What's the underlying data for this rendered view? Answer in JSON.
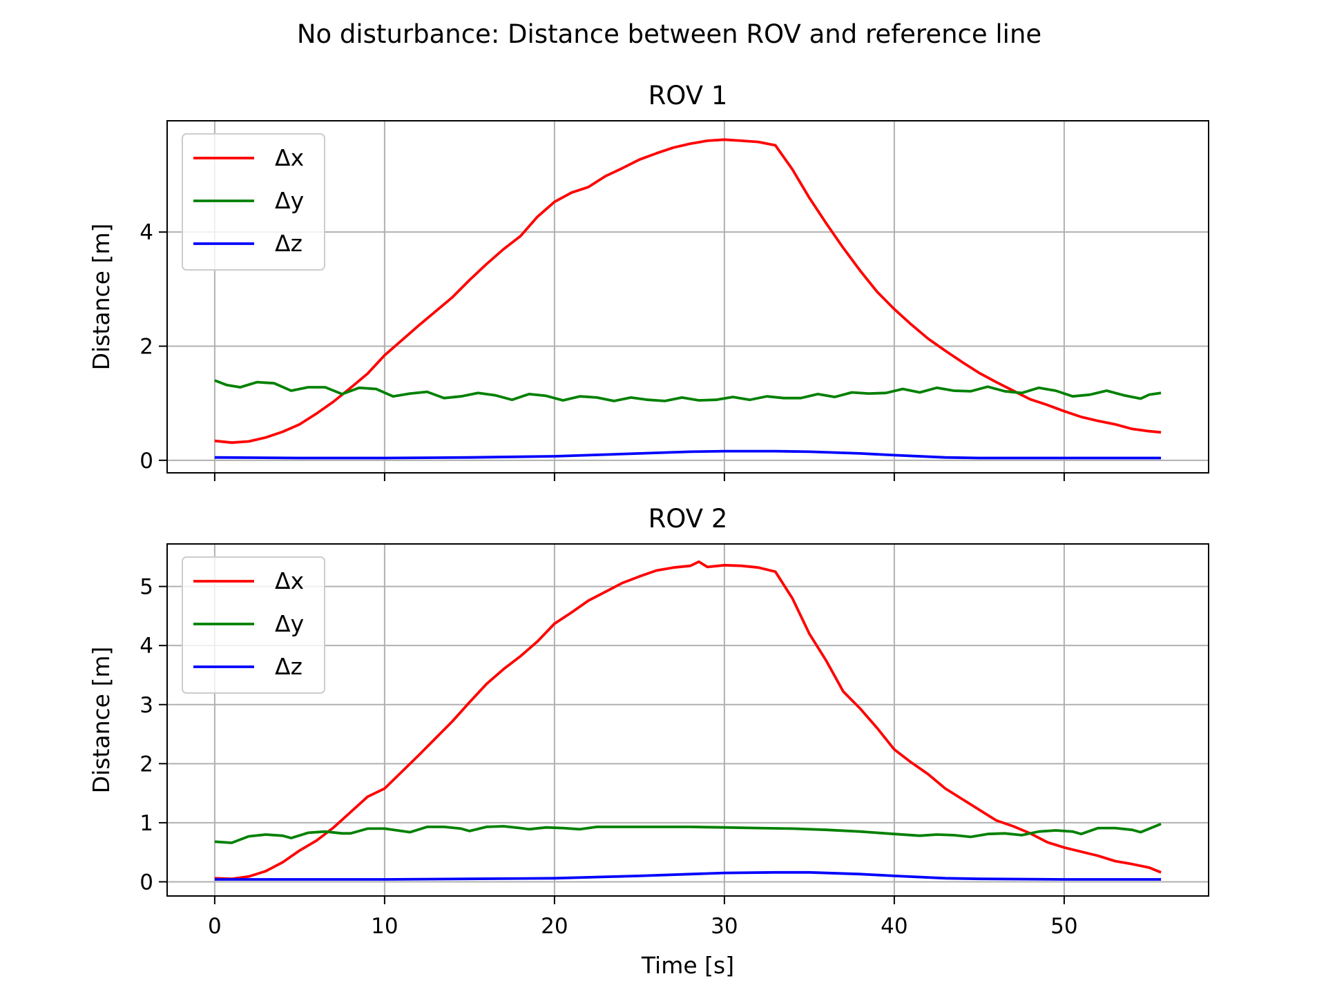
{
  "figure": {
    "suptitle": "No disturbance: Distance between ROV and reference line"
  },
  "colors": {
    "dx": "#ff0000",
    "dy": "#008000",
    "dz": "#0000ff",
    "grid": "#b0b0b0"
  },
  "chart_data": [
    {
      "type": "line",
      "title": "ROV 1",
      "xlabel": "",
      "ylabel": "Distance [m]",
      "xlim": [
        -2.8,
        58.5
      ],
      "ylim": [
        -0.22,
        5.95
      ],
      "xticks": [
        0,
        10,
        20,
        30,
        40,
        50
      ],
      "xtick_labels": [
        "",
        "",
        "",
        "",
        "",
        ""
      ],
      "yticks": [
        0,
        2,
        4
      ],
      "ytick_labels": [
        "0",
        "2",
        "4"
      ],
      "grid": true,
      "legend": "upper left",
      "series": [
        {
          "name": "Δx",
          "color": "#ff0000",
          "x": [
            0,
            1,
            2,
            3,
            4,
            5,
            6,
            7,
            8,
            9,
            10,
            11,
            12,
            13,
            14,
            15,
            16,
            17,
            18,
            19,
            20,
            21,
            22,
            23,
            24,
            25,
            26,
            27,
            28,
            29,
            30,
            31,
            32,
            33,
            34,
            35,
            36,
            37,
            38,
            39,
            40,
            41,
            42,
            43,
            44,
            45,
            46,
            47,
            48,
            49,
            50,
            51,
            52,
            53,
            54,
            55,
            55.7
          ],
          "y": [
            0.34,
            0.31,
            0.33,
            0.4,
            0.5,
            0.63,
            0.82,
            1.03,
            1.27,
            1.52,
            1.84,
            2.1,
            2.36,
            2.61,
            2.86,
            3.16,
            3.44,
            3.7,
            3.93,
            4.27,
            4.53,
            4.69,
            4.79,
            4.98,
            5.12,
            5.27,
            5.38,
            5.48,
            5.55,
            5.6,
            5.62,
            5.6,
            5.58,
            5.52,
            5.1,
            4.6,
            4.15,
            3.72,
            3.32,
            2.95,
            2.65,
            2.38,
            2.13,
            1.92,
            1.72,
            1.53,
            1.37,
            1.22,
            1.07,
            0.97,
            0.86,
            0.76,
            0.69,
            0.63,
            0.55,
            0.51,
            0.49
          ]
        },
        {
          "name": "Δy",
          "color": "#008000",
          "x": [
            0,
            0.7,
            1.5,
            2.5,
            3.5,
            4.5,
            5.5,
            6.5,
            7.5,
            8.5,
            9.5,
            10.5,
            11.5,
            12.5,
            13.5,
            14.5,
            15.5,
            16.5,
            17.5,
            18.5,
            19.5,
            20.5,
            21.5,
            22.5,
            23.5,
            24.5,
            25.5,
            26.5,
            27.5,
            28.5,
            29.5,
            30.5,
            31.5,
            32.5,
            33.5,
            34.5,
            35.5,
            36.5,
            37.5,
            38.5,
            39.5,
            40.5,
            41.5,
            42.5,
            43.5,
            44.5,
            45.5,
            46.5,
            47.5,
            48.5,
            49.5,
            50.5,
            51.5,
            52.5,
            53.5,
            54.5,
            55,
            55.7
          ],
          "y": [
            1.4,
            1.32,
            1.28,
            1.37,
            1.35,
            1.22,
            1.28,
            1.28,
            1.16,
            1.27,
            1.25,
            1.12,
            1.17,
            1.2,
            1.09,
            1.12,
            1.18,
            1.14,
            1.06,
            1.16,
            1.13,
            1.05,
            1.12,
            1.1,
            1.04,
            1.1,
            1.06,
            1.04,
            1.1,
            1.05,
            1.06,
            1.11,
            1.06,
            1.12,
            1.09,
            1.09,
            1.16,
            1.11,
            1.19,
            1.17,
            1.18,
            1.25,
            1.19,
            1.27,
            1.22,
            1.21,
            1.29,
            1.21,
            1.18,
            1.27,
            1.22,
            1.12,
            1.15,
            1.22,
            1.14,
            1.08,
            1.15,
            1.18
          ]
        },
        {
          "name": "Δz",
          "color": "#0000ff",
          "x": [
            0,
            5,
            10,
            15,
            20,
            25,
            28,
            30,
            33,
            35,
            38,
            40,
            43,
            45,
            50,
            55.7
          ],
          "y": [
            0.05,
            0.04,
            0.04,
            0.05,
            0.07,
            0.12,
            0.15,
            0.16,
            0.16,
            0.15,
            0.12,
            0.09,
            0.05,
            0.04,
            0.04,
            0.04
          ]
        }
      ]
    },
    {
      "type": "line",
      "title": "ROV 2",
      "xlabel": "Time [s]",
      "ylabel": "Distance [m]",
      "xlim": [
        -2.8,
        58.5
      ],
      "ylim": [
        -0.24,
        5.72
      ],
      "xticks": [
        0,
        10,
        20,
        30,
        40,
        50
      ],
      "xtick_labels": [
        "0",
        "10",
        "20",
        "30",
        "40",
        "50"
      ],
      "yticks": [
        0,
        1,
        2,
        3,
        4,
        5
      ],
      "ytick_labels": [
        "0",
        "1",
        "2",
        "3",
        "4",
        "5"
      ],
      "grid": true,
      "legend": "upper left",
      "series": [
        {
          "name": "Δx",
          "color": "#ff0000",
          "x": [
            0,
            1,
            2,
            3,
            4,
            5,
            6,
            7,
            8,
            9,
            10,
            11,
            12,
            13,
            14,
            15,
            16,
            17,
            18,
            19,
            20,
            21,
            22,
            23,
            24,
            25,
            26,
            27,
            28,
            28.5,
            29,
            30,
            31,
            32,
            33,
            34,
            35,
            36,
            37,
            38,
            39,
            40,
            41,
            42,
            43,
            44,
            45,
            46,
            47,
            48,
            49,
            50,
            51,
            52,
            53,
            54,
            55,
            55.7
          ],
          "y": [
            0.06,
            0.05,
            0.09,
            0.18,
            0.33,
            0.53,
            0.7,
            0.92,
            1.18,
            1.44,
            1.58,
            1.86,
            2.14,
            2.43,
            2.72,
            3.04,
            3.35,
            3.6,
            3.82,
            4.07,
            4.37,
            4.56,
            4.76,
            4.91,
            5.06,
            5.17,
            5.27,
            5.32,
            5.35,
            5.42,
            5.33,
            5.36,
            5.35,
            5.32,
            5.25,
            4.8,
            4.2,
            3.74,
            3.22,
            2.93,
            2.6,
            2.24,
            2.02,
            1.82,
            1.58,
            1.4,
            1.22,
            1.04,
            0.94,
            0.82,
            0.67,
            0.58,
            0.51,
            0.44,
            0.35,
            0.3,
            0.24,
            0.16
          ]
        },
        {
          "name": "Δy",
          "color": "#008000",
          "x": [
            0,
            1,
            2,
            3,
            4,
            4.5,
            5.5,
            6.5,
            7.5,
            8,
            9,
            10,
            11,
            11.5,
            12.5,
            13.5,
            14.5,
            15,
            16,
            17,
            18,
            18.5,
            19.5,
            20.5,
            21.5,
            22.5,
            24,
            26,
            28,
            30,
            32,
            34,
            36,
            38,
            40,
            41.5,
            42.5,
            43.5,
            44.5,
            45.5,
            46.5,
            47.5,
            48.5,
            49.5,
            50.5,
            51,
            52,
            53,
            54,
            54.5,
            55.7
          ],
          "y": [
            0.68,
            0.66,
            0.77,
            0.8,
            0.78,
            0.74,
            0.83,
            0.85,
            0.82,
            0.82,
            0.9,
            0.9,
            0.86,
            0.84,
            0.93,
            0.93,
            0.9,
            0.86,
            0.93,
            0.94,
            0.91,
            0.89,
            0.92,
            0.91,
            0.89,
            0.93,
            0.93,
            0.93,
            0.93,
            0.92,
            0.91,
            0.9,
            0.88,
            0.85,
            0.81,
            0.78,
            0.8,
            0.79,
            0.76,
            0.81,
            0.82,
            0.79,
            0.85,
            0.87,
            0.85,
            0.81,
            0.91,
            0.91,
            0.88,
            0.84,
            0.98
          ]
        },
        {
          "name": "Δz",
          "color": "#0000ff",
          "x": [
            0,
            5,
            10,
            15,
            20,
            25,
            28,
            30,
            33,
            35,
            38,
            40,
            43,
            45,
            50,
            55.7
          ],
          "y": [
            0.04,
            0.04,
            0.04,
            0.05,
            0.06,
            0.1,
            0.13,
            0.15,
            0.16,
            0.16,
            0.13,
            0.1,
            0.06,
            0.05,
            0.04,
            0.04
          ]
        }
      ]
    }
  ]
}
